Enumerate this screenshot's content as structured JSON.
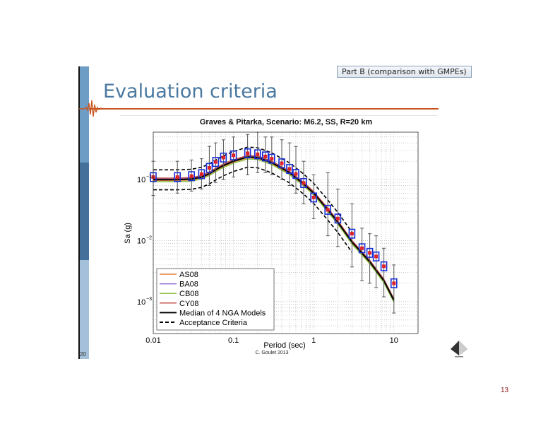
{
  "slide": {
    "badge": "Part B (comparison with GMPEs)",
    "title": "Evaluation criteria",
    "left_page_number": "20",
    "slide_number": "13",
    "credit": "C. Goulet 2013",
    "sidebar_colors": [
      "#6d9cc4",
      "#44709a",
      "#a4c0da"
    ],
    "accent_color": "#c9541e"
  },
  "chart_data": {
    "type": "scatter",
    "title": "Graves & Pitarka, Scenario: M6.2, SS, R=20 km",
    "xlabel": "Period (sec)",
    "ylabel": "Sa (g)",
    "xscale": "log",
    "yscale": "log",
    "xlim": [
      0.01,
      20
    ],
    "ylim": [
      0.0003,
      0.6
    ],
    "grid": true,
    "legend_position": "bottom-left",
    "x_ticks": [
      {
        "value": 0.01,
        "label": "0.01"
      },
      {
        "value": 0.1,
        "label": "0.1"
      },
      {
        "value": 1,
        "label": "1"
      },
      {
        "value": 10,
        "label": "10"
      }
    ],
    "y_ticks": [
      {
        "value": 0.1,
        "base": "10",
        "exp": "−1"
      },
      {
        "value": 0.01,
        "base": "10",
        "exp": "−2"
      },
      {
        "value": 0.001,
        "base": "10",
        "exp": "−3"
      }
    ],
    "simulation": {
      "periods": [
        0.01,
        0.02,
        0.03,
        0.04,
        0.05,
        0.06,
        0.075,
        0.1,
        0.15,
        0.2,
        0.25,
        0.3,
        0.4,
        0.5,
        0.6,
        0.75,
        1,
        1.5,
        2,
        3,
        4,
        5,
        6,
        7.5,
        10
      ],
      "values": [
        0.11,
        0.11,
        0.114,
        0.123,
        0.156,
        0.195,
        0.23,
        0.25,
        0.27,
        0.26,
        0.24,
        0.22,
        0.185,
        0.15,
        0.124,
        0.088,
        0.051,
        0.032,
        0.023,
        0.013,
        0.0075,
        0.0063,
        0.0055,
        0.0038,
        0.002
      ],
      "upper": [
        0.2,
        0.2,
        0.21,
        0.22,
        0.35,
        0.4,
        0.45,
        0.5,
        0.55,
        0.6,
        0.5,
        0.5,
        0.45,
        0.4,
        0.35,
        0.2,
        0.12,
        0.13,
        0.07,
        0.04,
        0.016,
        0.013,
        0.012,
        0.0075,
        0.004
      ],
      "lower": [
        0.055,
        0.06,
        0.065,
        0.07,
        0.08,
        0.09,
        0.1,
        0.11,
        0.12,
        0.13,
        0.13,
        0.12,
        0.1,
        0.08,
        0.06,
        0.04,
        0.023,
        0.012,
        0.008,
        0.0037,
        0.0022,
        0.002,
        0.0017,
        0.0012,
        0.00065
      ],
      "box_factor": 1.18,
      "marker_color": "#e0202a",
      "box_color": "#1a2fd6",
      "errorbar_color": "#555555"
    },
    "median": {
      "periods": [
        0.01,
        0.02,
        0.03,
        0.04,
        0.05,
        0.06,
        0.075,
        0.1,
        0.15,
        0.2,
        0.3,
        0.5,
        0.75,
        1,
        1.5,
        2,
        3,
        5,
        7.5,
        10
      ],
      "values": [
        0.1,
        0.1,
        0.102,
        0.11,
        0.125,
        0.145,
        0.17,
        0.2,
        0.235,
        0.23,
        0.19,
        0.13,
        0.085,
        0.06,
        0.032,
        0.02,
        0.0095,
        0.0045,
        0.0022,
        0.00105
      ]
    },
    "acceptance": {
      "factor_low": 0.68,
      "factor_high": 1.45,
      "period_range": [
        0.01,
        3
      ]
    },
    "series": [
      {
        "name": "AS08",
        "color": "#e8803a",
        "factor": 0.97
      },
      {
        "name": "BA08",
        "color": "#8a6fd0",
        "factor": 1.03
      },
      {
        "name": "CB08",
        "color": "#8dc043",
        "factor": 0.93
      },
      {
        "name": "CY08",
        "color": "#c8504a",
        "factor": 1.06
      },
      {
        "name": "Median of 4 NGA Models",
        "color": "#000000",
        "style": "solid"
      },
      {
        "name": "Acceptance Criteria",
        "color": "#000000",
        "style": "dashed"
      }
    ]
  }
}
